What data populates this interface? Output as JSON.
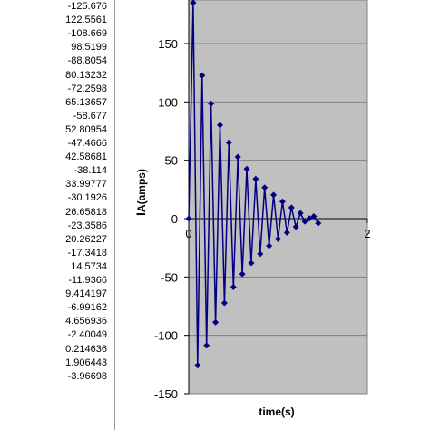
{
  "column_values": [
    "-125.676",
    "122.5561",
    "-108.669",
    "98.5199",
    "-88.8054",
    "80.13232",
    "-72.2598",
    "65.13657",
    "-58.677",
    "52.80954",
    "-47.4666",
    "42.58681",
    "-38.114",
    "33.99777",
    "-30.1926",
    "26.65818",
    "-23.3586",
    "20.26227",
    "-17.3418",
    "14.5734",
    "-11.9366",
    "9.414197",
    "-6.99162",
    "4.656936",
    "-2.40049",
    "0.214636",
    "1.906443",
    "-3.96698"
  ],
  "chart_data": {
    "type": "line",
    "xlabel": "time(s)",
    "ylabel_main": "I",
    "ylabel_sub": "A(amps)",
    "xlim": [
      0,
      2
    ],
    "ylim": [
      -150,
      200
    ],
    "x_ticks": [
      "0",
      "2"
    ],
    "y_ticks": [
      "150",
      "100",
      "50",
      "0",
      "-50",
      "-100",
      "-150"
    ],
    "grid": "horizontal",
    "plot_area_color": "#c0c0c0",
    "series_color": "#000080",
    "series": [
      {
        "x": [
          0,
          0.05,
          0.1,
          0.15,
          0.2,
          0.25,
          0.3,
          0.35,
          0.4,
          0.45,
          0.5,
          0.55,
          0.6,
          0.65,
          0.7,
          0.75,
          0.8,
          0.85,
          0.9,
          0.95,
          1.0,
          1.05,
          1.1,
          1.15,
          1.2,
          1.25,
          1.3,
          1.35,
          1.4,
          1.45
        ],
        "y": [
          0,
          185,
          -125.676,
          122.5561,
          -108.669,
          98.5199,
          -88.8054,
          80.13232,
          -72.2598,
          65.13657,
          -58.677,
          52.80954,
          -47.4666,
          42.58681,
          -38.114,
          33.99777,
          -30.1926,
          26.65818,
          -23.3586,
          20.26227,
          -17.3418,
          14.5734,
          -11.9366,
          9.414197,
          -6.99162,
          4.656936,
          -2.40049,
          0.214636,
          1.906443,
          -3.96698
        ]
      }
    ]
  }
}
